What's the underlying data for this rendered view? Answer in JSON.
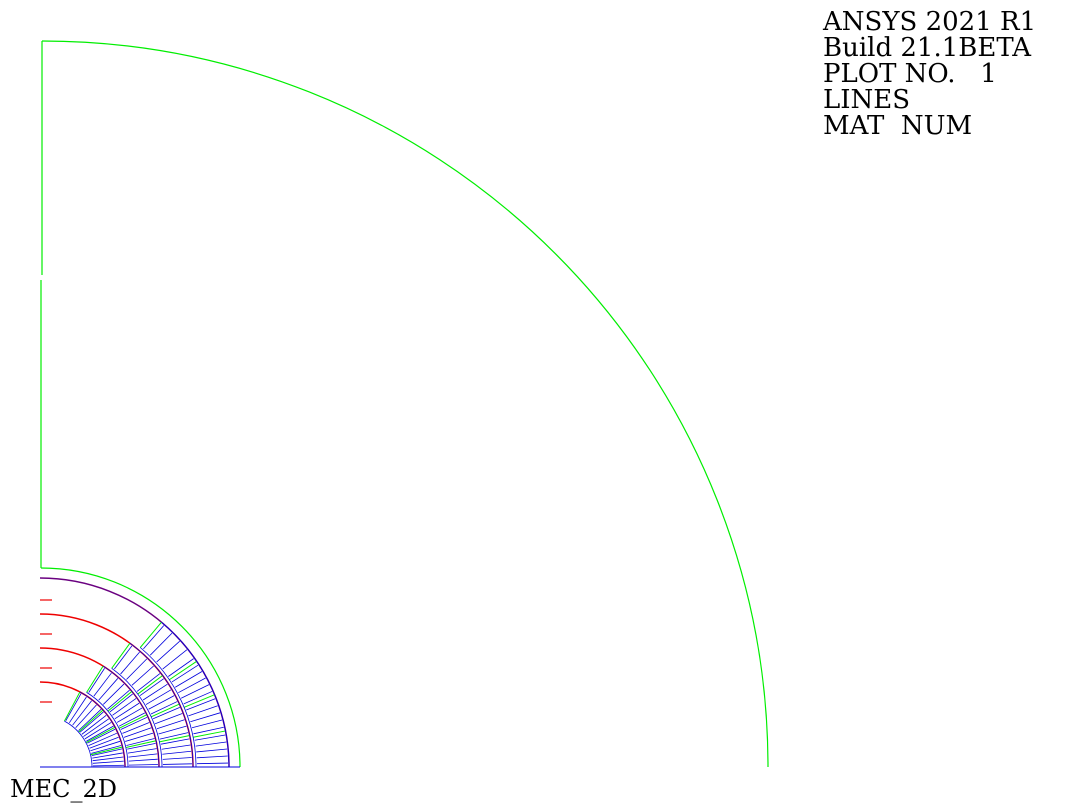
{
  "header": {
    "lines": [
      "ANSYS 2021 R1",
      "Build 21.1BETA",
      "PLOT NO.   1",
      "LINES",
      "MAT  NUM"
    ]
  },
  "footer": {
    "model_name": "MEC_2D"
  },
  "colors": {
    "outer_boundary": "#00ee00",
    "coil_layers": "#ee0000",
    "winding_lines": "#0000dd",
    "outer_arc": "#6a0080",
    "text": "#000000"
  }
}
